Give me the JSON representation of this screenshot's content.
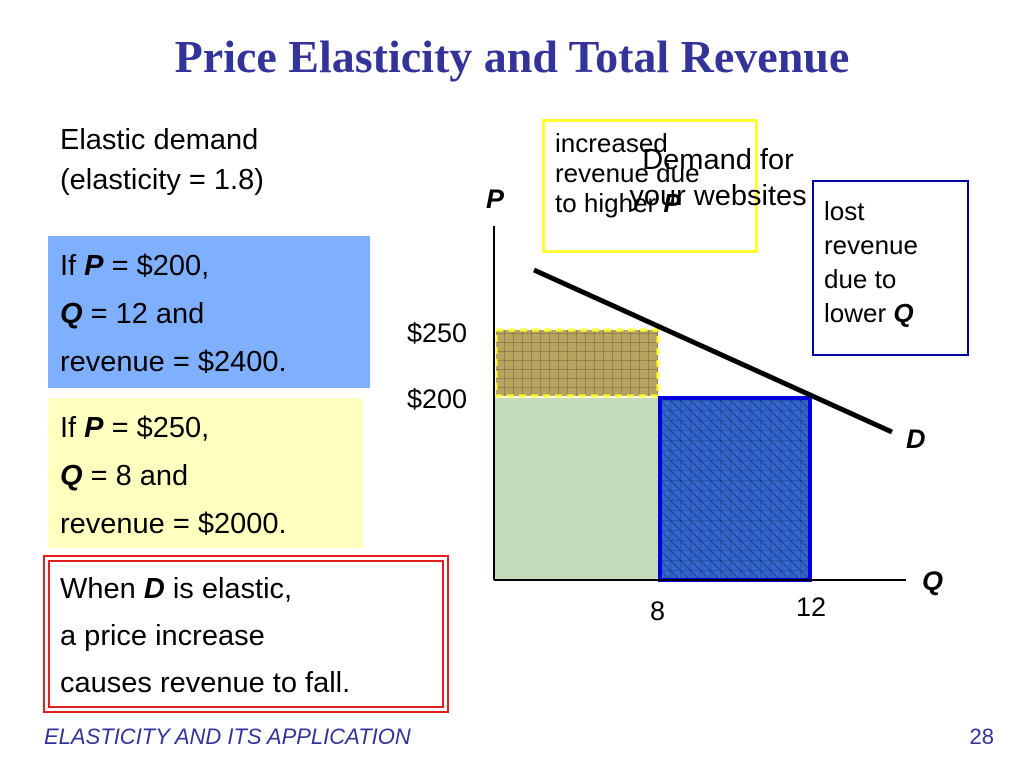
{
  "title": "Price Elasticity and Total Revenue",
  "elastic": {
    "line1": "Elastic demand",
    "line2": "(elasticity = 1.8)"
  },
  "box1": {
    "if": "If ",
    "p": "P",
    "p_val": " = $200,",
    "q": "Q",
    "q_val": " = 12 and",
    "rev": "revenue = $2400."
  },
  "box2": {
    "if": "If ",
    "p": "P",
    "p_val": " = $250,",
    "q": "Q",
    "q_val": " = 8 and",
    "rev": "revenue = $2000."
  },
  "box3": {
    "when": "When ",
    "d": "D",
    "is_elastic": " is elastic,",
    "line2": "a price increase",
    "line3": "causes revenue to fall."
  },
  "callout_increase": {
    "line1": "increased",
    "line2": "revenue due",
    "line3": "to higher ",
    "p": "P"
  },
  "callout_lost": {
    "line1": "lost",
    "line2": "revenue",
    "line3": "due to",
    "line4": "lower ",
    "q": "Q"
  },
  "graph_title": {
    "line1": "Demand for",
    "line2": "your websites"
  },
  "axis": {
    "y_label": "P",
    "x_label": "Q",
    "curve_label": "D"
  },
  "ticks": {
    "y": [
      "$250",
      "$200"
    ],
    "x": [
      "8",
      "12"
    ]
  },
  "values": {
    "p_low": 200,
    "p_high": 250,
    "q_low": 8,
    "q_high": 12
  },
  "colors": {
    "title": "#333399",
    "blue_box": "#7fb0ff",
    "yellow_box": "#ffffc0",
    "base_rect": "#c4dcba",
    "lost_rect": "#3366cc",
    "gain_rect": "#b8a460"
  },
  "footer": {
    "text": "ELASTICITY AND ITS APPLICATION",
    "page": "28"
  }
}
